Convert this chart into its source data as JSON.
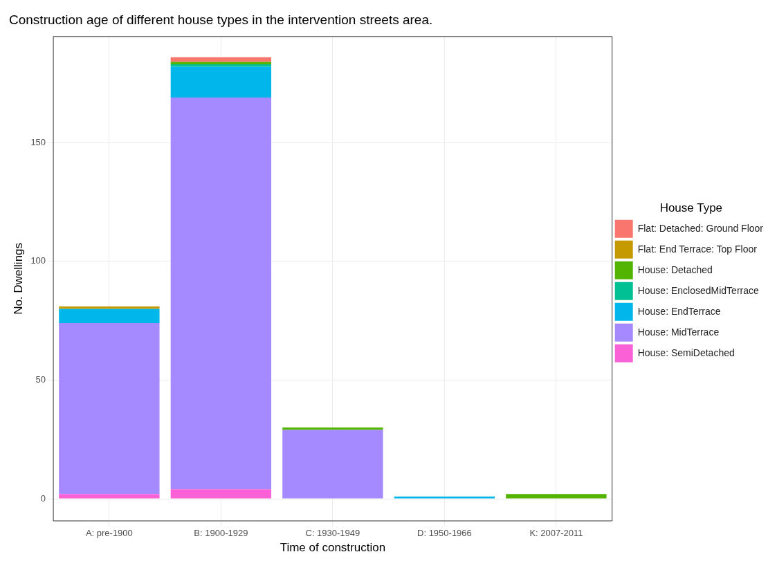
{
  "chart_data": {
    "type": "bar",
    "title": "Construction age of different house types in the intervention streets area.",
    "xlabel": "Time of construction",
    "ylabel": "No. Dwellings",
    "legend_title": "House Type",
    "categories": [
      "A: pre-1900",
      "B: 1900-1929",
      "C: 1930-1949",
      "D: 1950-1966",
      "K: 2007-2011"
    ],
    "stacked": true,
    "series": [
      {
        "name": "House: SemiDetached",
        "color": "#fb61d7",
        "values": [
          2,
          4,
          0,
          0,
          0
        ]
      },
      {
        "name": "House: MidTerrace",
        "color": "#a58aff",
        "values": [
          72,
          165,
          29,
          0,
          0
        ]
      },
      {
        "name": "House: EndTerrace",
        "color": "#00b6eb",
        "values": [
          6,
          13,
          0,
          1,
          0
        ]
      },
      {
        "name": "House: EnclosedMidTerrace",
        "color": "#00c094",
        "values": [
          0,
          1,
          0,
          0,
          0
        ]
      },
      {
        "name": "House: Detached",
        "color": "#53b400",
        "values": [
          0,
          1,
          1,
          0,
          2
        ]
      },
      {
        "name": "Flat: End Terrace: Top Floor",
        "color": "#c49a00",
        "values": [
          1,
          0,
          0,
          0,
          0
        ]
      },
      {
        "name": "Flat: Detached: Ground Floor",
        "color": "#f8766d",
        "values": [
          0,
          2,
          0,
          0,
          0
        ]
      }
    ],
    "ylim": [
      -9.3,
      194.7
    ],
    "yticks": [
      0,
      50,
      100,
      150
    ],
    "grid": true,
    "legend": "right"
  }
}
